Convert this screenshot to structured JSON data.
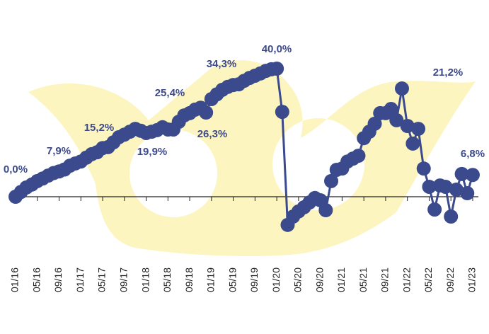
{
  "chart_data": {
    "type": "line",
    "categories": [
      "01/16",
      null,
      null,
      null,
      "05/16",
      null,
      null,
      null,
      "09/16",
      null,
      null,
      null,
      "01/17",
      null,
      null,
      null,
      "05/17",
      null,
      null,
      null,
      "09/17",
      null,
      null,
      null,
      "01/18",
      null,
      null,
      null,
      "05/18",
      null,
      null,
      null,
      "09/18",
      null,
      null,
      null,
      "01/19",
      null,
      null,
      null,
      "05/19",
      null,
      null,
      null,
      "09/19",
      null,
      null,
      null,
      "01/20",
      null,
      null,
      null,
      "05/20",
      null,
      null,
      null,
      "09/20",
      null,
      null,
      null,
      "01/21",
      null,
      null,
      null,
      "05/21",
      null,
      null,
      null,
      "09/21",
      null,
      null,
      null,
      "01/22",
      null,
      null,
      null,
      "05/22",
      null,
      null,
      null,
      "09/22",
      null,
      null,
      null,
      "01/23"
    ],
    "values": [
      0.0,
      1.5,
      2.9,
      3.8,
      4.9,
      5.7,
      6.6,
      7.4,
      7.9,
      8.5,
      9.7,
      10.4,
      11.0,
      12.2,
      13.3,
      13.9,
      15.2,
      15.5,
      17.0,
      18.6,
      19.4,
      20.3,
      21.2,
      20.6,
      19.9,
      20.3,
      20.8,
      21.7,
      21.0,
      21.0,
      23.4,
      25.4,
      26.1,
      27.2,
      27.8,
      26.3,
      30.5,
      32.0,
      33.4,
      34.3,
      34.9,
      35.1,
      36.2,
      37.1,
      37.8,
      38.5,
      39.3,
      39.8,
      40.0,
      26.5,
      -8.8,
      -6.2,
      -4.6,
      -3.3,
      -1.8,
      -0.4,
      -1.1,
      -4.2,
      4.9,
      8.4,
      8.8,
      11.0,
      11.9,
      12.8,
      18.3,
      20.3,
      22.8,
      26.1,
      26.1,
      27.4,
      23.9,
      33.8,
      22.1,
      16.6,
      21.2,
      8.8,
      3.1,
      -4.0,
      3.5,
      3.1,
      -6.2,
      2.2,
      7.1,
      1.1,
      6.8
    ],
    "value_labels": [
      "0,0%",
      null,
      null,
      null,
      null,
      null,
      null,
      null,
      "7,9%",
      null,
      null,
      null,
      null,
      null,
      null,
      null,
      "15,2%",
      null,
      null,
      null,
      null,
      null,
      null,
      null,
      "19,9%",
      null,
      null,
      null,
      null,
      null,
      null,
      "25,4%",
      null,
      null,
      null,
      "26,3%",
      null,
      null,
      null,
      "34,3%",
      null,
      null,
      null,
      null,
      null,
      null,
      null,
      null,
      "40,0%",
      null,
      null,
      null,
      null,
      null,
      null,
      null,
      null,
      null,
      null,
      null,
      null,
      null,
      null,
      null,
      null,
      null,
      null,
      null,
      null,
      null,
      null,
      null,
      null,
      null,
      "21,2%",
      null,
      null,
      null,
      null,
      null,
      null,
      null,
      null,
      null,
      "6,8%"
    ],
    "color": "#3a4a8c"
  }
}
